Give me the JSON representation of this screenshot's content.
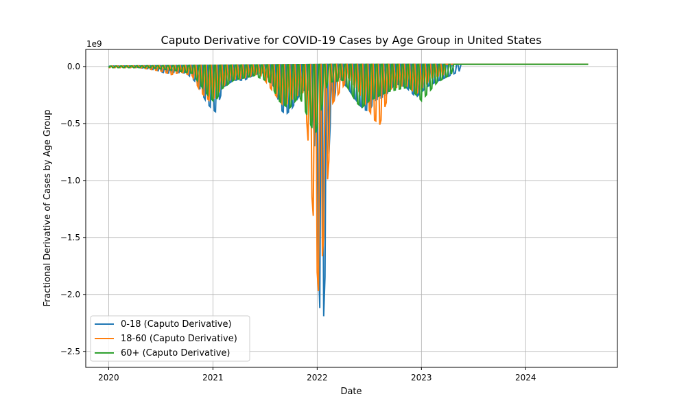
{
  "chart_data": {
    "type": "line",
    "title": "Caputo Derivative for COVID-19 Cases by Age Group in United States",
    "xlabel": "Date",
    "ylabel": "Fractional Derivative of Cases by Age Group",
    "y_offset_label": "1e9",
    "x_ticks": [
      "2020",
      "2021",
      "2022",
      "2023",
      "2024"
    ],
    "y_ticks": [
      "0.0",
      "−0.5",
      "−1.0",
      "−1.5",
      "−2.0",
      "−2.5"
    ],
    "y_tick_values": [
      0.0,
      -0.5,
      -1.0,
      -1.5,
      -2.0,
      -2.5
    ],
    "x_tick_values": [
      2020.0,
      2021.0,
      2022.0,
      2023.0,
      2024.0
    ],
    "xlim": [
      2019.78,
      2024.88
    ],
    "ylim": [
      -2.64,
      0.15
    ],
    "grid": true,
    "legend_position": "lower-left",
    "series": [
      {
        "name": "0-18 (Caputo Derivative)",
        "color": "#1f77b4",
        "spike_points": [
          [
            2020.0,
            0.0
          ],
          [
            2020.25,
            -0.005
          ],
          [
            2020.35,
            -0.015
          ],
          [
            2020.45,
            -0.03
          ],
          [
            2020.55,
            -0.06
          ],
          [
            2020.65,
            -0.05
          ],
          [
            2020.75,
            -0.06
          ],
          [
            2020.85,
            -0.15
          ],
          [
            2020.9,
            -0.25
          ],
          [
            2020.95,
            -0.33
          ],
          [
            2021.0,
            -0.38
          ],
          [
            2021.03,
            -0.4
          ],
          [
            2021.06,
            -0.3
          ],
          [
            2021.1,
            -0.18
          ],
          [
            2021.2,
            -0.12
          ],
          [
            2021.3,
            -0.12
          ],
          [
            2021.4,
            -0.07
          ],
          [
            2021.5,
            -0.05
          ],
          [
            2021.6,
            -0.2
          ],
          [
            2021.65,
            -0.38
          ],
          [
            2021.7,
            -0.42
          ],
          [
            2021.75,
            -0.38
          ],
          [
            2021.8,
            -0.3
          ],
          [
            2021.85,
            -0.22
          ],
          [
            2021.9,
            -0.2
          ],
          [
            2021.95,
            -0.22
          ],
          [
            2022.0,
            -1.18
          ],
          [
            2022.02,
            -2.02
          ],
          [
            2022.045,
            -2.52
          ],
          [
            2022.06,
            -2.26
          ],
          [
            2022.08,
            -1.71
          ],
          [
            2022.12,
            -0.55
          ],
          [
            2022.2,
            -0.08
          ],
          [
            2022.3,
            -0.2
          ],
          [
            2022.4,
            -0.33
          ],
          [
            2022.45,
            -0.38
          ],
          [
            2022.5,
            -0.39
          ],
          [
            2022.55,
            -0.3
          ],
          [
            2022.65,
            -0.26
          ],
          [
            2022.75,
            -0.15
          ],
          [
            2022.85,
            -0.18
          ],
          [
            2022.95,
            -0.27
          ],
          [
            2023.05,
            -0.18
          ],
          [
            2023.15,
            -0.13
          ],
          [
            2023.25,
            -0.09
          ],
          [
            2023.37,
            -0.04
          ]
        ],
        "drift_end": [
          2024.6,
          0.02
        ]
      },
      {
        "name": "18-60 (Caputo Derivative)",
        "color": "#ff7f0e",
        "spike_points": [
          [
            2020.3,
            -0.01
          ],
          [
            2020.5,
            -0.04
          ],
          [
            2020.6,
            -0.07
          ],
          [
            2020.7,
            -0.05
          ],
          [
            2020.8,
            -0.08
          ],
          [
            2020.88,
            -0.22
          ],
          [
            2020.93,
            -0.27
          ],
          [
            2020.98,
            -0.31
          ],
          [
            2021.15,
            -0.12
          ],
          [
            2021.3,
            -0.1
          ],
          [
            2021.45,
            -0.06
          ],
          [
            2021.6,
            -0.25
          ],
          [
            2021.68,
            -0.35
          ],
          [
            2021.78,
            -0.27
          ],
          [
            2021.88,
            -0.22
          ],
          [
            2022.02,
            -2.07
          ],
          [
            2022.1,
            -0.99
          ],
          [
            2022.15,
            -0.32
          ],
          [
            2022.3,
            -0.1
          ],
          [
            2022.4,
            -0.22
          ],
          [
            2022.55,
            -0.47
          ],
          [
            2022.58,
            -0.49
          ],
          [
            2022.6,
            -0.51
          ],
          [
            2022.7,
            -0.2
          ],
          [
            2022.85,
            -0.16
          ],
          [
            2022.95,
            -0.24
          ],
          [
            2023.1,
            -0.1
          ],
          [
            2023.25,
            -0.06
          ]
        ],
        "drift_end": [
          2024.6,
          0.02
        ]
      },
      {
        "name": "60+ (Caputo Derivative)",
        "color": "#2ca02c",
        "spike_points": [
          [
            2020.4,
            -0.01
          ],
          [
            2020.6,
            -0.03
          ],
          [
            2020.8,
            -0.06
          ],
          [
            2020.95,
            -0.25
          ],
          [
            2021.02,
            -0.32
          ],
          [
            2021.08,
            -0.2
          ],
          [
            2021.2,
            -0.12
          ],
          [
            2021.4,
            -0.08
          ],
          [
            2021.55,
            -0.14
          ],
          [
            2021.63,
            -0.3
          ],
          [
            2021.73,
            -0.37
          ],
          [
            2021.83,
            -0.26
          ],
          [
            2021.98,
            -0.61
          ],
          [
            2022.1,
            -0.14
          ],
          [
            2022.25,
            -0.12
          ],
          [
            2022.38,
            -0.32
          ],
          [
            2022.43,
            -0.36
          ],
          [
            2022.5,
            -0.3
          ],
          [
            2022.68,
            -0.22
          ],
          [
            2022.88,
            -0.18
          ],
          [
            2023.0,
            -0.3
          ],
          [
            2023.15,
            -0.14
          ],
          [
            2023.3,
            -0.06
          ]
        ],
        "drift_end": [
          2024.6,
          0.02
        ]
      }
    ]
  }
}
